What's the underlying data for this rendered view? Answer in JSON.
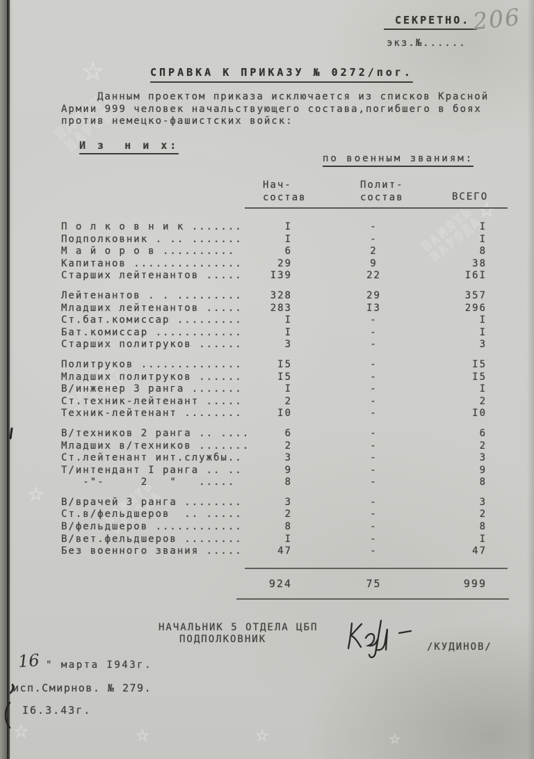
{
  "header": {
    "classification": "СЕКРЕТНО.",
    "copy_number_label": "экз.№......",
    "page_number_handwritten": "206"
  },
  "title": "СПРАВКА К ПРИКАЗУ № 0272/пог.",
  "intro_paragraph": "Данным проектом приказа исключается из списков Красной Армии 999 человек начальствующего состава,погибшего в боях против немецко-фашистских войск:",
  "subheading_left": "И з  н и х:",
  "subheading_right": "по военным званиям:",
  "table": {
    "columns": [
      {
        "line1": "Нач-",
        "line2": "состав"
      },
      {
        "line1": "Полит-",
        "line2": "состав"
      },
      {
        "line1": "ВСЕГО",
        "line2": ""
      }
    ],
    "groups": [
      {
        "rows": [
          {
            "label": "П о л к о в н и к .......",
            "nach": "I",
            "polit": "-",
            "vsego": "I"
          },
          {
            "label": "Подполковник . .. .......",
            "nach": "I",
            "polit": "-",
            "vsego": "I"
          },
          {
            "label": "М а й о р о в ..........",
            "nach": "6",
            "polit": "2",
            "vsego": "8"
          },
          {
            "label": "Капитанов ...............",
            "nach": "29",
            "polit": "9",
            "vsego": "38"
          },
          {
            "label": "Старших лейтенантов .....",
            "nach": "I39",
            "polit": "22",
            "vsego": "I6I"
          }
        ]
      },
      {
        "rows": [
          {
            "label": "Лейтенантов . . .........",
            "nach": "328",
            "polit": "29",
            "vsego": "357"
          },
          {
            "label": "Младших лейтенантов .....",
            "nach": "283",
            "polit": "I3",
            "vsego": "296"
          },
          {
            "label": "Ст.бат.комиссар .........",
            "nach": "I",
            "polit": "-",
            "vsego": "I"
          },
          {
            "label": "Бат.комиссар ............",
            "nach": "I",
            "polit": "-",
            "vsego": "I"
          },
          {
            "label": "Старших политруков ......",
            "nach": "3",
            "polit": "-",
            "vsego": "3"
          }
        ]
      },
      {
        "rows": [
          {
            "label": "Политруков ..............",
            "nach": "I5",
            "polit": "-",
            "vsego": "I5"
          },
          {
            "label": "Младших политруков ......",
            "nach": "I5",
            "polit": "-",
            "vsego": "I5"
          },
          {
            "label": "В/инженер 3 ранга .......",
            "nach": "I",
            "polit": "-",
            "vsego": "I"
          },
          {
            "label": "Ст.техник-лейтенант .....",
            "nach": "2",
            "polit": "-",
            "vsego": "2"
          },
          {
            "label": "Техник-лейтенант ........",
            "nach": "I0",
            "polit": "-",
            "vsego": "I0"
          }
        ]
      },
      {
        "rows": [
          {
            "label": "В/техников 2 ранга .. ....",
            "nach": "6",
            "polit": "-",
            "vsego": "6"
          },
          {
            "label": "Младших в/техников .......",
            "nach": "2",
            "polit": "-",
            "vsego": "2"
          },
          {
            "label": "Ст.лейтенант инт.службы..",
            "nach": "3",
            "polit": "-",
            "vsego": "3"
          },
          {
            "label": "Т/интендант I ранга .. ..",
            "nach": "9",
            "polit": "-",
            "vsego": "9"
          },
          {
            "label": "   -\"-     2   \"   .....",
            "nach": "8",
            "polit": "-",
            "vsego": "8"
          }
        ]
      },
      {
        "rows": [
          {
            "label": "В/врачей 3 ранга ........",
            "nach": "3",
            "polit": "-",
            "vsego": "3"
          },
          {
            "label": "Ст.в/фельдшеров  .. .....",
            "nach": "2",
            "polit": "-",
            "vsego": "2"
          },
          {
            "label": "В/фельдшеров ............",
            "nach": "8",
            "polit": "-",
            "vsego": "8"
          },
          {
            "label": "В/вет.фельдшеров ........",
            "nach": "I",
            "polit": "-",
            "vsego": "I"
          },
          {
            "label": "Без военного звания .....",
            "nach": "47",
            "polit": "-",
            "vsego": "47"
          }
        ]
      }
    ],
    "totals": {
      "nach": "924",
      "polit": "75",
      "vsego": "999"
    }
  },
  "signature": {
    "position_line1": "НАЧАЛЬНИК 5 ОТДЕЛА ЦБП",
    "position_line2": "ПОДПОЛКОВНИК",
    "surname": "/КУДИНОВ/"
  },
  "footer": {
    "date_day_handwritten": "16",
    "date_rest": "\" марта I943г.",
    "executor_note": "исп.Смирнов. № 279.",
    "date_stamp": "I6.3.43г."
  },
  "watermark": {
    "star": "☆",
    "line1": "ПАМЯТЬ",
    "line2": "НАРОДА"
  }
}
